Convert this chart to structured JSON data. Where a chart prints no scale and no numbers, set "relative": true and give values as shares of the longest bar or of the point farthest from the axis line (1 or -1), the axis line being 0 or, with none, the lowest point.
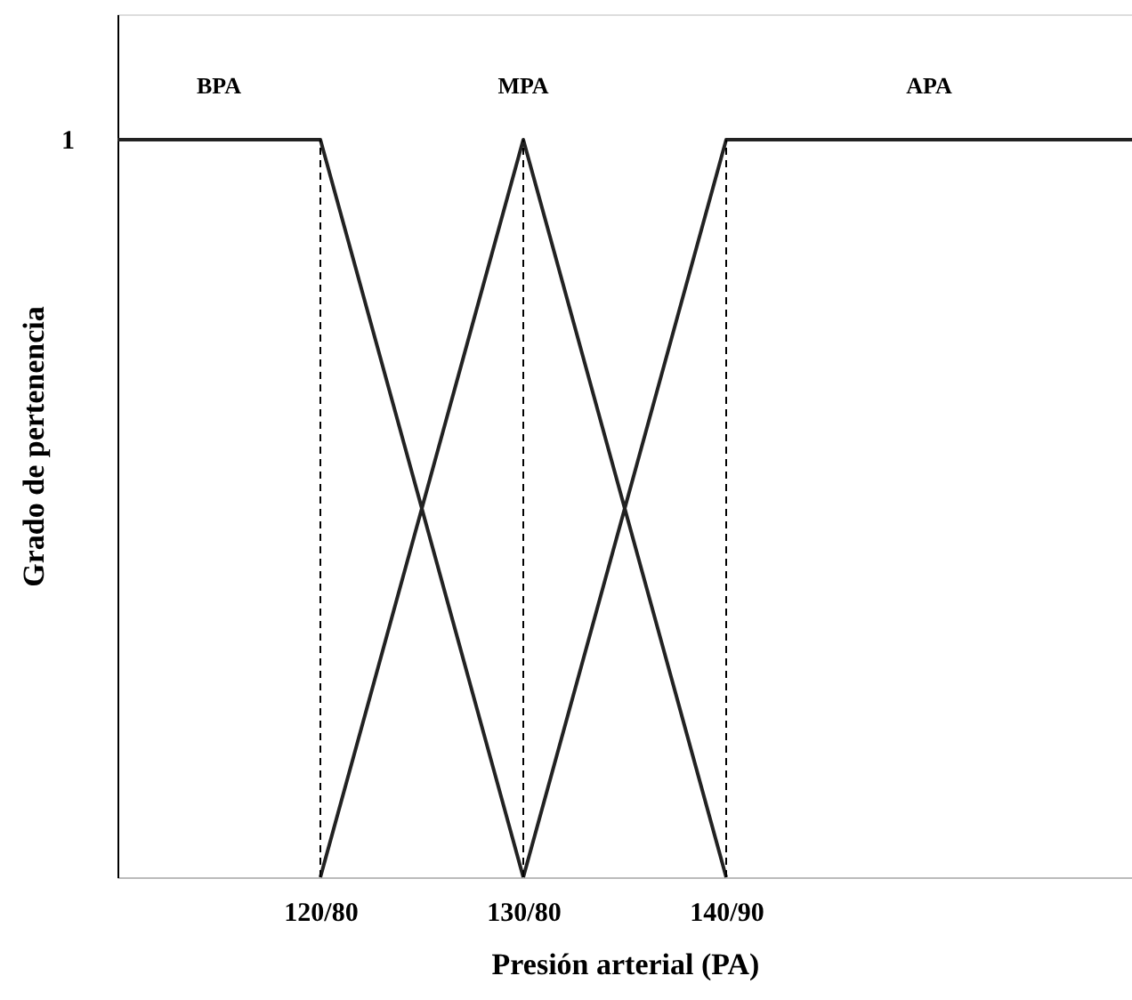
{
  "chart_data": {
    "type": "line",
    "relative": true,
    "xlabel": "Presión arterial (PA)",
    "ylabel": "Grado de pertenencia",
    "categories": [
      null,
      "120/80",
      "130/80",
      "140/90",
      null,
      null
    ],
    "series": [
      {
        "name": "BPA",
        "color": "#222222",
        "values": [
          1,
          1,
          0,
          null,
          null,
          null
        ]
      },
      {
        "name": "MPA",
        "color": "#222222",
        "values": [
          null,
          0,
          1,
          0,
          null,
          null
        ]
      },
      {
        "name": "APA",
        "color": "#222222",
        "values": [
          null,
          null,
          0,
          1,
          1,
          1
        ]
      }
    ],
    "ref_lines": [
      {
        "axis": "x",
        "value": "120/80",
        "line_style": "dashed",
        "color": "#000000"
      },
      {
        "axis": "x",
        "value": "130/80",
        "line_style": "dashed",
        "color": "#000000"
      },
      {
        "axis": "x",
        "value": "140/90",
        "line_style": "dashed",
        "color": "#000000"
      }
    ],
    "annotations": [
      "1"
    ],
    "grid": false,
    "marker": "none",
    "line_style": "solid"
  }
}
